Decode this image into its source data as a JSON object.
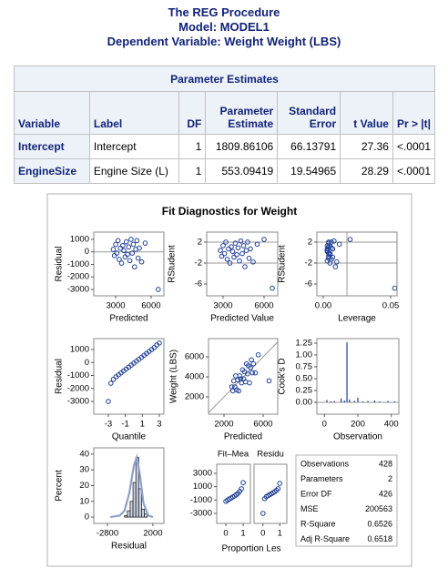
{
  "header": {
    "lines": [
      "The REG Procedure",
      "Model: MODEL1",
      "Dependent Variable: Weight Weight (LBS)"
    ]
  },
  "table": {
    "caption": "Parameter Estimates",
    "columns": [
      "Variable",
      "Label",
      "DF",
      "Parameter Estimate",
      "Standard Error",
      "t Value",
      "Pr > |t|"
    ],
    "rows": [
      [
        "Intercept",
        "Intercept",
        1,
        1809.86106,
        66.13791,
        27.36,
        "<.0001"
      ],
      [
        "EngineSize",
        "Engine Size (L)",
        1,
        553.09419,
        19.54965,
        28.29,
        "<.0001"
      ]
    ]
  },
  "diagnostics": {
    "title": "Fit Diagnostics for Weight",
    "plots": [
      {
        "type": "scatter",
        "ylabel": "Residual",
        "xlabel": "Predicted",
        "xlim": [
          1150,
          7080
        ],
        "ylim": [
          -3510,
          1580
        ],
        "xticks": [
          3000,
          6000
        ],
        "yticks": [
          1000,
          0,
          -1000,
          -2000,
          -3000
        ],
        "refy": [
          0
        ],
        "x": [
          2800,
          2900,
          3000,
          3100,
          3200,
          3300,
          3400,
          3500,
          3600,
          3700,
          3800,
          3900,
          4000,
          4100,
          4200,
          4300,
          4400,
          4500,
          4600,
          4700,
          4800,
          4900,
          5000,
          5200,
          5500,
          6600
        ],
        "y": [
          200,
          -300,
          600,
          -100,
          900,
          -600,
          300,
          -900,
          500,
          100,
          -400,
          800,
          -200,
          400,
          -700,
          1000,
          -100,
          600,
          -1200,
          200,
          900,
          -500,
          300,
          -800,
          700,
          -3000
        ]
      },
      {
        "type": "scatter",
        "ylabel": "RStudent",
        "xlabel": "Predicted Value",
        "xlim": [
          1800,
          7000
        ],
        "ylim": [
          -8.26,
          3.9
        ],
        "xticks": [
          3000,
          6000
        ],
        "yticks": [
          2,
          -2,
          -6
        ],
        "refy": [
          2,
          -2
        ],
        "x": [
          2800,
          2900,
          3000,
          3100,
          3200,
          3300,
          3400,
          3500,
          3600,
          3700,
          3800,
          3900,
          4000,
          4100,
          4200,
          4300,
          4400,
          4500,
          4600,
          4700,
          4800,
          4900,
          5000,
          5200,
          5500,
          6000,
          6600
        ],
        "y": [
          0.4,
          -0.7,
          1.3,
          -0.2,
          2.0,
          -1.3,
          0.7,
          -2.0,
          1.1,
          0.2,
          -0.9,
          1.8,
          -0.4,
          0.9,
          -1.6,
          2.2,
          -0.2,
          1.3,
          -2.7,
          0.4,
          2.0,
          -1.1,
          0.7,
          -1.8,
          1.6,
          2.5,
          -6.8
        ]
      },
      {
        "type": "scatter",
        "ylabel": "RStudent",
        "xlabel": "Leverage",
        "xlim": [
          -0.0047,
          0.0547
        ],
        "ylim": [
          -8.26,
          3.9
        ],
        "xticks": [
          {
            "value": 0,
            "label": "0.00"
          },
          0.05
        ],
        "yticks": [
          2,
          -2,
          -6
        ],
        "refy": [
          2,
          -2
        ],
        "refx": [
          0.0176
        ],
        "x": [
          0.003,
          0.004,
          0.003,
          0.005,
          0.004,
          0.006,
          0.003,
          0.005,
          0.004,
          0.003,
          0.007,
          0.004,
          0.005,
          0.006,
          0.003,
          0.008,
          0.004,
          0.005,
          0.009,
          0.003,
          0.006,
          0.004,
          0.007,
          0.01,
          0.012,
          0.02,
          0.053
        ],
        "y": [
          0.4,
          -0.7,
          1.3,
          -0.2,
          2.0,
          -1.3,
          0.7,
          -2.0,
          1.1,
          0.2,
          -0.9,
          1.8,
          -0.4,
          0.9,
          -1.6,
          2.2,
          -0.2,
          1.3,
          -2.7,
          0.4,
          2.0,
          -1.1,
          0.7,
          -1.8,
          1.6,
          2.5,
          -6.8
        ]
      },
      {
        "type": "scatter",
        "ylabel": "Residual",
        "xlabel": "Quantile",
        "xlim": [
          -4.71,
          3.54
        ],
        "ylim": [
          -3982,
          1842
        ],
        "xticks": [
          -3,
          -1,
          1,
          3
        ],
        "yticks": [
          1000,
          0,
          -1000,
          -2000,
          -3000
        ],
        "x": [
          -3,
          -2.7,
          -2.4,
          -2.1,
          -1.8,
          -1.5,
          -1.2,
          -0.9,
          -0.6,
          -0.3,
          0,
          0.3,
          0.6,
          0.9,
          1.2,
          1.5,
          1.8,
          2.1,
          2.4,
          2.7,
          3
        ],
        "y": [
          -3000,
          -1600,
          -1300,
          -1100,
          -950,
          -800,
          -650,
          -500,
          -350,
          -200,
          -50,
          100,
          250,
          400,
          550,
          700,
          850,
          1000,
          1150,
          1350,
          1500
        ]
      },
      {
        "type": "scatter",
        "ylabel": "Weight (LBS)",
        "xlabel": "Predicted",
        "xlim": [
          418,
          7488
        ],
        "ylim": [
          273,
          7818
        ],
        "xticks": [
          2000,
          6000
        ],
        "yticks": [
          6000,
          4000,
          2000
        ],
        "diag": true,
        "x": [
          2800,
          2900,
          3000,
          3100,
          3200,
          3300,
          3400,
          3500,
          3600,
          3700,
          3800,
          3900,
          4000,
          4100,
          4200,
          4300,
          4400,
          4500,
          4600,
          4700,
          4800,
          4900,
          5000,
          5200,
          5500,
          6600
        ],
        "y": [
          3000,
          2600,
          3600,
          3000,
          4100,
          2700,
          3700,
          2600,
          4100,
          3800,
          3400,
          4700,
          3800,
          4500,
          3500,
          5300,
          4300,
          5100,
          3400,
          4900,
          5700,
          4400,
          5300,
          4400,
          6200,
          3600
        ]
      },
      {
        "type": "needle",
        "ylabel": "Cook's D",
        "xlabel": "Observation",
        "xlim": [
          -45,
          445
        ],
        "ylim": [
          -0.25,
          1.346
        ],
        "xticks": [
          0,
          200,
          400
        ],
        "yticks": [
          1.25,
          {
            "value": 1,
            "label": "1.00"
          },
          0.75,
          {
            "value": 0.5,
            "label": "0.50"
          },
          0.25,
          {
            "value": 0,
            "label": "0.00"
          }
        ],
        "x": [
          15,
          40,
          60,
          100,
          120,
          135,
          150,
          180,
          200,
          230,
          260,
          300,
          330,
          380,
          420
        ],
        "y": [
          0.05,
          0.02,
          0.03,
          0.08,
          0.04,
          1.27,
          0.06,
          0.03,
          0.1,
          0.02,
          0.03,
          0.04,
          0.02,
          0.03,
          0.02
        ]
      },
      {
        "type": "histogram",
        "ylabel": "Percent",
        "xlabel": "Residual",
        "xlim": [
          -4240,
          3160
        ],
        "ylim": [
          -4,
          44
        ],
        "xticks": [
          -2800,
          2000
        ],
        "yticks": [
          40,
          30,
          20,
          10,
          0
        ],
        "bins": [
          -1000,
          -700,
          -400,
          -100,
          200,
          500,
          800,
          1100,
          1400
        ],
        "counts": [
          1,
          4,
          10,
          22,
          38,
          18,
          5,
          2
        ],
        "curve": {
          "x": [
            -2500,
            -1500,
            -1000,
            -500,
            0,
            300,
            600,
            1000,
            1500,
            2000
          ],
          "y": [
            0,
            1,
            4,
            15,
            33,
            38,
            28,
            9,
            1,
            0
          ]
        }
      },
      {
        "type": "fitmean",
        "title": "Fit–Mea",
        "title2": "Residu",
        "xlabel": "Proportion Les",
        "xlim": [
          -0.53,
          1.42
        ],
        "ylim": [
          -4500,
          4364
        ],
        "xticks": [
          0,
          1
        ],
        "yticks": [
          3000,
          1000,
          -1000,
          -3000
        ],
        "panels": [
          {
            "x": [
              0,
              0.1,
              0.2,
              0.3,
              0.4,
              0.5,
              0.6,
              0.7,
              0.8,
              0.9,
              1
            ],
            "y": [
              -1200,
              -1000,
              -850,
              -700,
              -550,
              -400,
              -200,
              0,
              300,
              700,
              1600
            ]
          },
          {
            "x": [
              0,
              0.1,
              0.2,
              0.3,
              0.4,
              0.5,
              0.6,
              0.7,
              0.8,
              0.9,
              1
            ],
            "y": [
              -3000,
              -800,
              -500,
              -350,
              -200,
              -50,
              100,
              250,
              450,
              700,
              1500
            ]
          }
        ]
      }
    ],
    "stats": [
      [
        "Observations",
        428
      ],
      [
        "Parameters",
        2
      ],
      [
        "Error DF",
        426
      ],
      [
        "MSE",
        200563
      ],
      [
        "R-Square",
        0.6526
      ],
      [
        "Adj R-Square",
        0.6518
      ]
    ]
  }
}
